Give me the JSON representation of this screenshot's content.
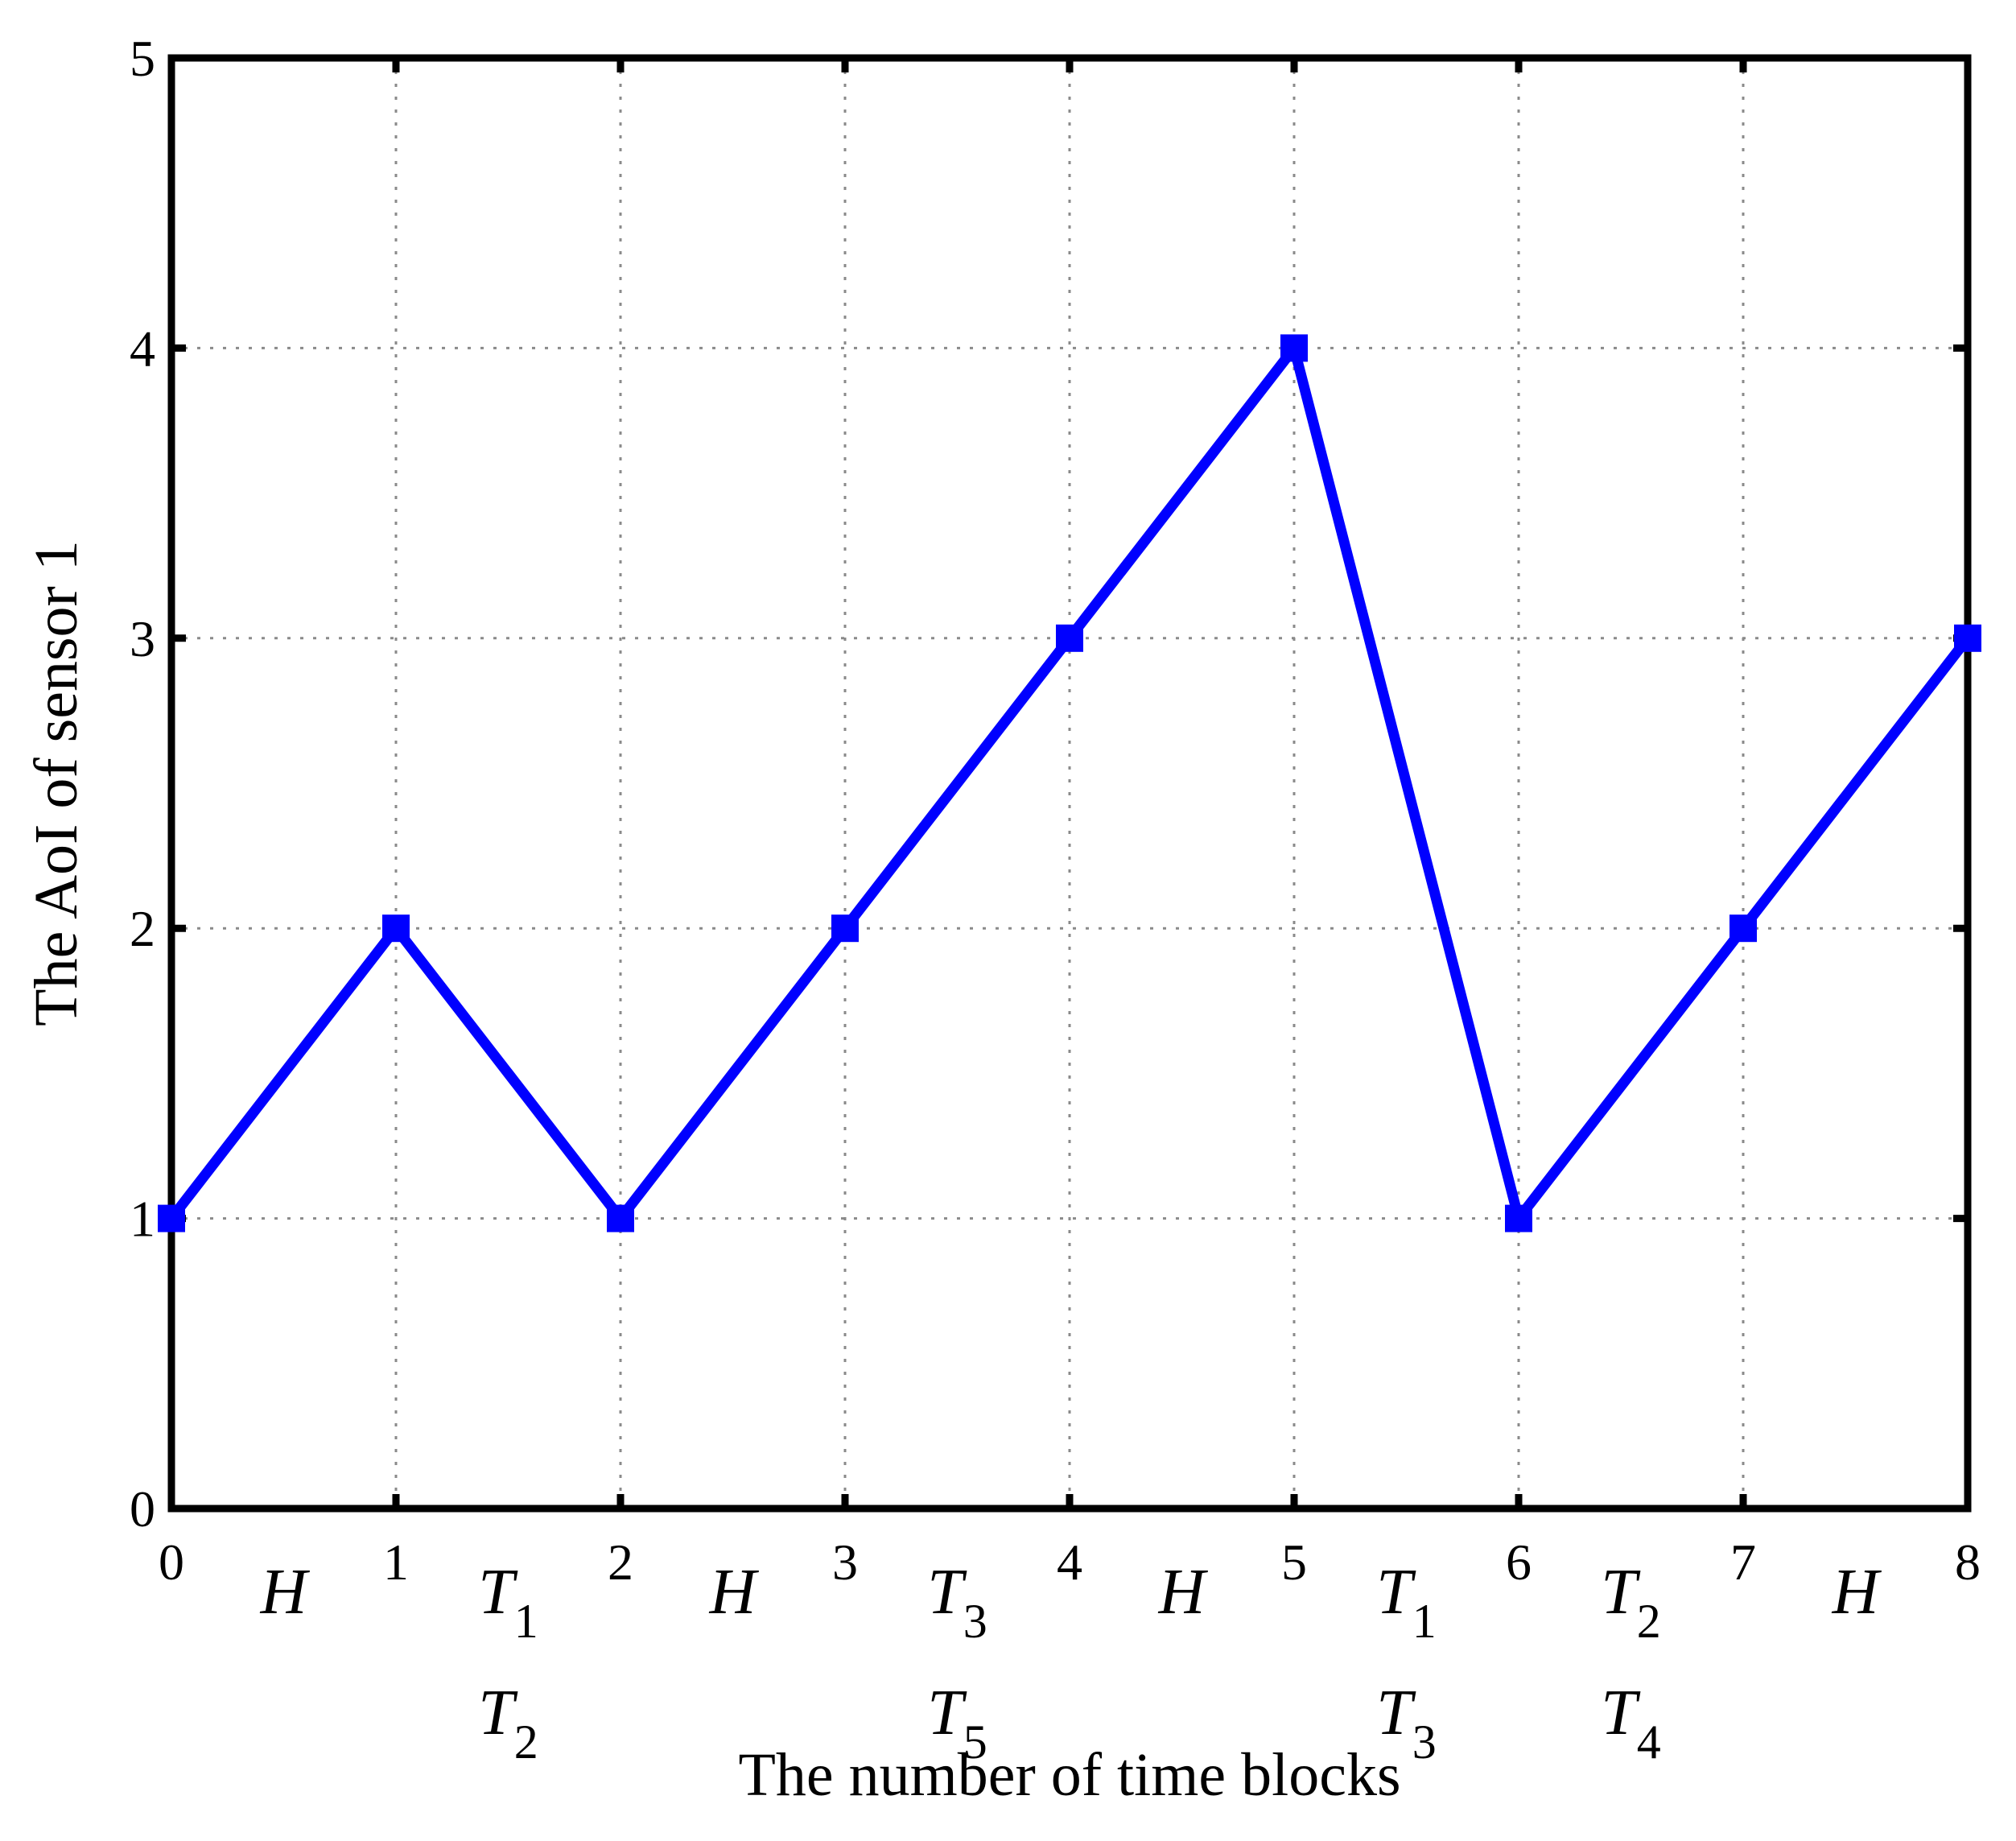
{
  "chart_data": {
    "type": "line",
    "title": "",
    "xlabel": "The number of time blocks",
    "ylabel": "The AoI of sensor 1",
    "xlim": [
      0,
      8
    ],
    "ylim": [
      0,
      5
    ],
    "xticks": [
      "0",
      "1",
      "2",
      "3",
      "4",
      "5",
      "6",
      "7",
      "8"
    ],
    "yticks": [
      "0",
      "1",
      "2",
      "3",
      "4",
      "5"
    ],
    "grid": true,
    "series": [
      {
        "color": "#0000ff",
        "marker": "square",
        "x": [
          0,
          1,
          2,
          3,
          4,
          5,
          6,
          7,
          8
        ],
        "y": [
          1,
          2,
          1,
          2,
          3,
          4,
          1,
          2,
          3
        ]
      }
    ],
    "slot_annotations": [
      {
        "x": 0.5,
        "lines": [
          {
            "base": "H",
            "sub": ""
          }
        ]
      },
      {
        "x": 1.5,
        "lines": [
          {
            "base": "T",
            "sub": "1"
          },
          {
            "base": "T",
            "sub": "2"
          }
        ]
      },
      {
        "x": 2.5,
        "lines": [
          {
            "base": "H",
            "sub": ""
          }
        ]
      },
      {
        "x": 3.5,
        "lines": [
          {
            "base": "T",
            "sub": "3"
          },
          {
            "base": "T",
            "sub": "5"
          }
        ]
      },
      {
        "x": 4.5,
        "lines": [
          {
            "base": "H",
            "sub": ""
          }
        ]
      },
      {
        "x": 5.5,
        "lines": [
          {
            "base": "T",
            "sub": "1"
          },
          {
            "base": "T",
            "sub": "3"
          }
        ]
      },
      {
        "x": 6.5,
        "lines": [
          {
            "base": "T",
            "sub": "2"
          },
          {
            "base": "T",
            "sub": "4"
          }
        ]
      },
      {
        "x": 7.5,
        "lines": [
          {
            "base": "H",
            "sub": ""
          }
        ]
      }
    ]
  }
}
